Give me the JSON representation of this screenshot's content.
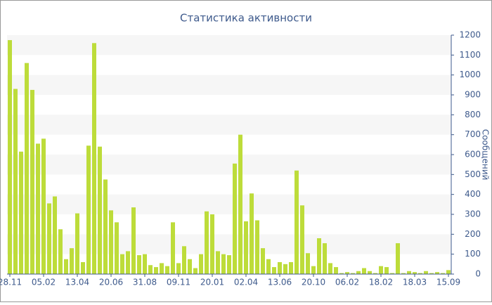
{
  "chart_data": {
    "type": "bar",
    "title": "Статистика активности",
    "y_label": "Сообщений",
    "categories": [
      "28.11",
      null,
      null,
      null,
      null,
      null,
      "05.02",
      null,
      null,
      null,
      null,
      null,
      "13.04",
      null,
      null,
      null,
      null,
      null,
      "20.06",
      null,
      null,
      null,
      null,
      null,
      "31.08",
      null,
      null,
      null,
      null,
      null,
      "09.11",
      null,
      null,
      null,
      null,
      null,
      "20.01",
      null,
      null,
      null,
      null,
      null,
      "02.04",
      null,
      null,
      null,
      null,
      null,
      "13.06",
      null,
      null,
      null,
      null,
      null,
      "20.10",
      null,
      null,
      null,
      null,
      null,
      "06.02",
      null,
      null,
      null,
      null,
      null,
      "18.02",
      null,
      null,
      null,
      null,
      null,
      "18.03",
      null,
      null,
      null,
      null,
      null,
      "15.09"
    ],
    "values": [
      1175,
      930,
      615,
      1060,
      925,
      655,
      680,
      355,
      390,
      225,
      75,
      130,
      305,
      60,
      645,
      1160,
      640,
      475,
      320,
      260,
      100,
      115,
      335,
      95,
      100,
      45,
      35,
      55,
      40,
      260,
      55,
      140,
      75,
      30,
      100,
      315,
      300,
      115,
      100,
      95,
      555,
      700,
      265,
      405,
      270,
      130,
      75,
      35,
      60,
      50,
      60,
      520,
      345,
      105,
      40,
      180,
      155,
      55,
      35,
      5,
      10,
      5,
      15,
      30,
      15,
      5,
      40,
      35,
      5,
      155,
      5,
      15,
      10,
      5,
      15,
      5,
      10,
      5,
      20
    ],
    "color": "#bddc3a",
    "ylim": [
      0,
      1200
    ],
    "yticks": [
      0,
      100,
      200,
      300,
      400,
      500,
      600,
      700,
      800,
      900,
      1000,
      1100,
      1200
    ],
    "grid": true
  }
}
